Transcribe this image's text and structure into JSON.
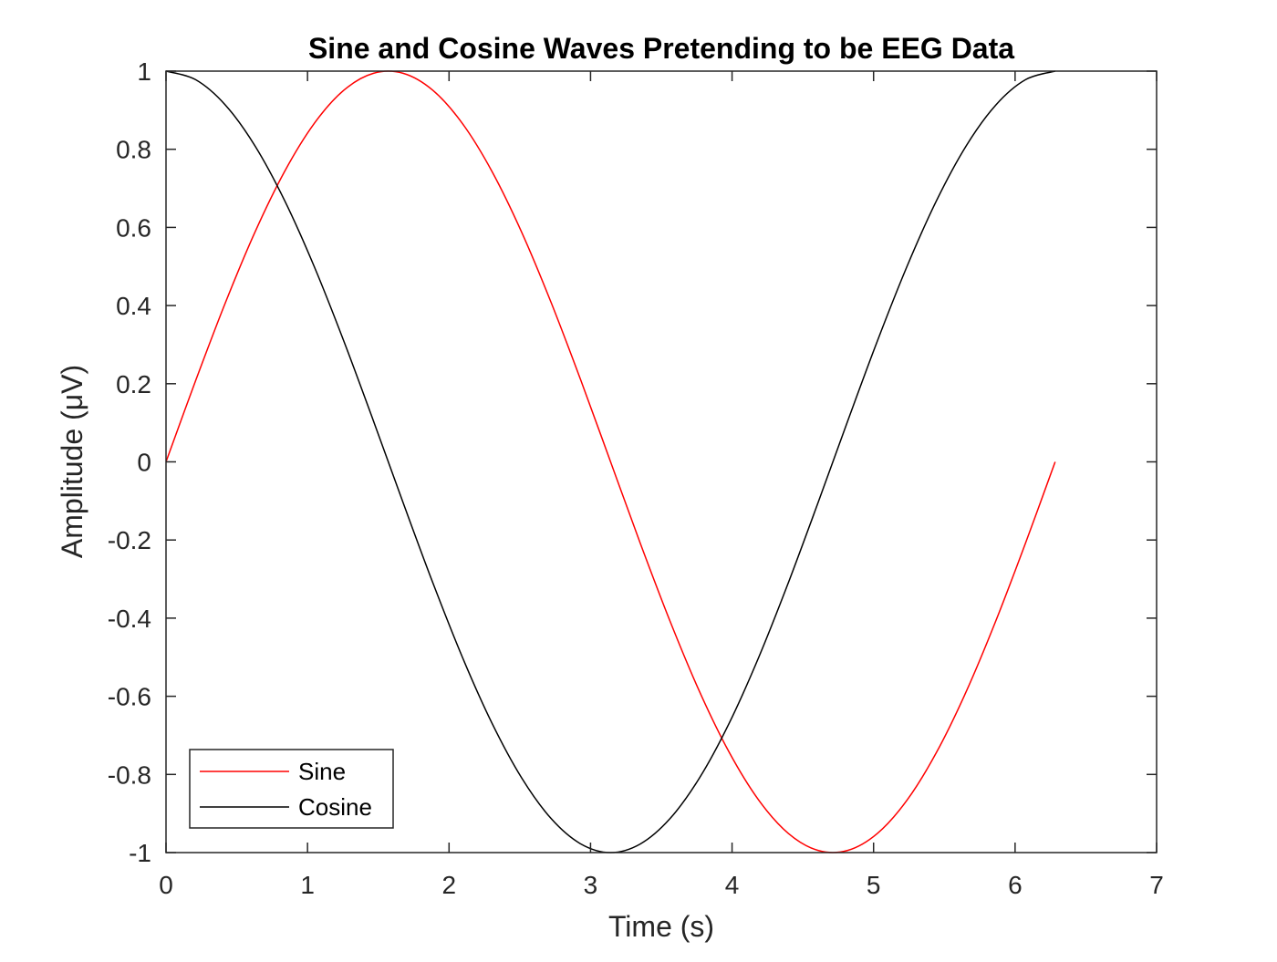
{
  "chart_data": {
    "type": "line",
    "title": "Sine and Cosine Waves Pretending to be EEG Data",
    "xlabel": "Time (s)",
    "ylabel": "Amplitude  (μV)",
    "xlim": [
      0,
      7
    ],
    "ylim": [
      -1,
      1
    ],
    "x_ticks": [
      0,
      1,
      2,
      3,
      4,
      5,
      6,
      7
    ],
    "y_ticks": [
      1,
      0.8,
      0.6,
      0.4,
      0.2,
      0,
      -0.2,
      -0.4,
      -0.6,
      -0.8,
      -1
    ],
    "x_tick_labels": [
      "0",
      "1",
      "2",
      "3",
      "4",
      "5",
      "6",
      "7"
    ],
    "y_tick_labels": [
      "1",
      "0.8",
      "0.6",
      "0.4",
      "0.2",
      "0",
      "-0.2",
      "-0.4",
      "-0.6",
      "-0.8",
      "-1"
    ],
    "grid": false,
    "legend_position": "bottom-left",
    "x": [
      0.0,
      0.2094,
      0.4189,
      0.6283,
      0.8378,
      1.0472,
      1.2566,
      1.4661,
      1.6755,
      1.885,
      2.0944,
      2.3038,
      2.5133,
      2.7227,
      2.9322,
      3.1416,
      3.351,
      3.5605,
      3.7699,
      3.9794,
      4.1888,
      4.3982,
      4.6077,
      4.8171,
      5.0265,
      5.236,
      5.4454,
      5.6549,
      5.8643,
      6.0737,
      6.2832
    ],
    "series": [
      {
        "name": "Sine",
        "color": "#ff0000",
        "values": [
          0.0,
          0.2079,
          0.4067,
          0.5878,
          0.7431,
          0.866,
          0.9511,
          0.9945,
          0.9945,
          0.9511,
          0.866,
          0.7431,
          0.5878,
          0.4067,
          0.2079,
          0.0,
          -0.2079,
          -0.4067,
          -0.5878,
          -0.7431,
          -0.866,
          -0.9511,
          -0.9945,
          -0.9945,
          -0.9511,
          -0.866,
          -0.7431,
          -0.5878,
          -0.4067,
          -0.2079,
          0.0
        ]
      },
      {
        "name": "Cosine",
        "color": "#000000",
        "values": [
          1.0,
          0.9781,
          0.9135,
          0.809,
          0.6691,
          0.5,
          0.309,
          0.1045,
          -0.1045,
          -0.309,
          -0.5,
          -0.6691,
          -0.809,
          -0.9135,
          -0.9781,
          -1.0,
          -0.9781,
          -0.9135,
          -0.809,
          -0.6691,
          -0.5,
          -0.309,
          -0.1045,
          0.1045,
          0.309,
          0.5,
          0.6691,
          0.809,
          0.9135,
          0.9781,
          1.0
        ]
      }
    ]
  }
}
